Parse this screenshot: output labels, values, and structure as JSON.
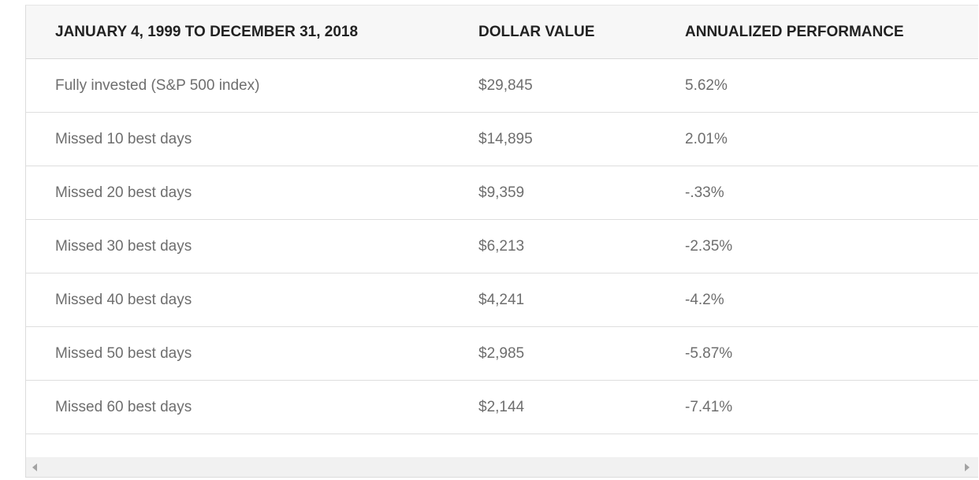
{
  "table": {
    "headers": [
      "JANUARY 4, 1999 TO DECEMBER 31, 2018",
      "DOLLAR VALUE",
      "ANNUALIZED PERFORMANCE"
    ],
    "rows": [
      [
        "Fully invested (S&P 500 index)",
        "$29,845",
        "5.62%"
      ],
      [
        "Missed 10 best days",
        "$14,895",
        "2.01%"
      ],
      [
        "Missed 20 best days",
        "$9,359",
        "-.33%"
      ],
      [
        "Missed 30 best days",
        "$6,213",
        "-2.35%"
      ],
      [
        "Missed 40 best days",
        "$4,241",
        "-4.2%"
      ],
      [
        "Missed 50 best days",
        "$2,985",
        "-5.87%"
      ],
      [
        "Missed 60 best days",
        "$2,144",
        "-7.41%"
      ]
    ]
  },
  "scrollbar": {
    "left_icon": "arrow-left-icon",
    "right_icon": "arrow-right-icon"
  },
  "colors": {
    "header_bg": "#f7f7f7",
    "header_text": "#222222",
    "cell_text": "#6e6e6e",
    "border": "#dedede",
    "scrollbar_bg": "#f1f1f1"
  }
}
